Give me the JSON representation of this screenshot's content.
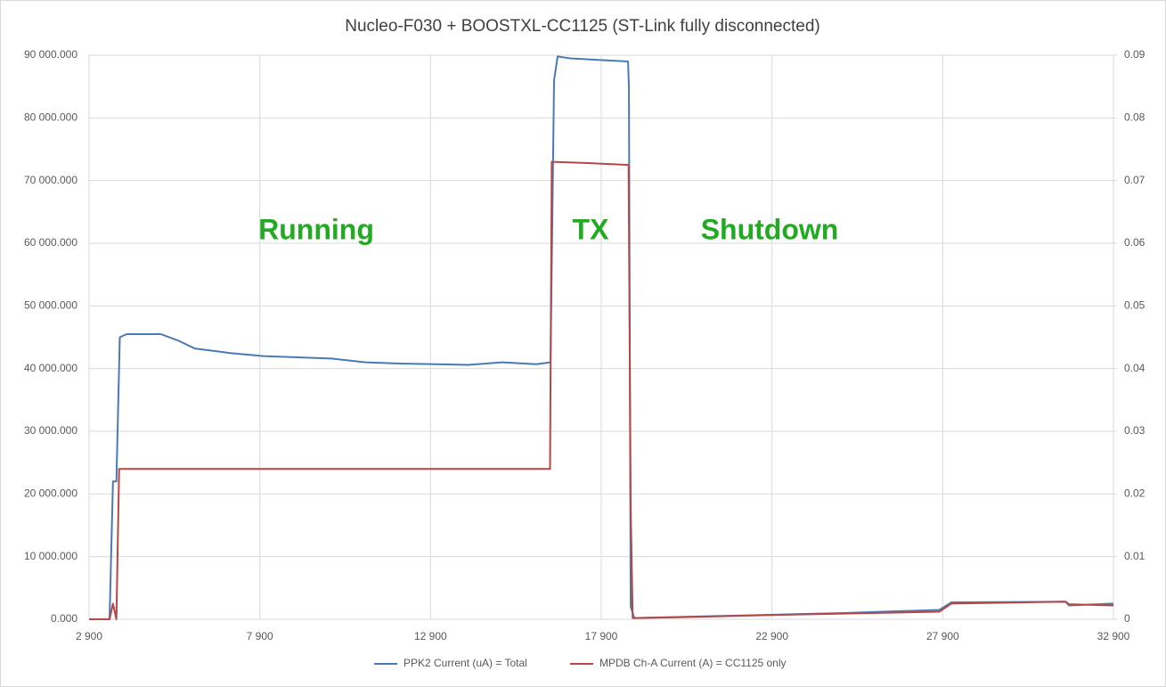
{
  "chart_data": {
    "type": "line",
    "title": "Nucleo-F030 + BOOSTXL-CC1125  (ST-Link fully disconnected)",
    "annotations": [
      "Running",
      "TX",
      "Shutdown"
    ],
    "xlim": [
      2900,
      32900
    ],
    "xticks": [
      {
        "value": 2900,
        "label": "2 900"
      },
      {
        "value": 7900,
        "label": "7 900"
      },
      {
        "value": 12900,
        "label": "12 900"
      },
      {
        "value": 17900,
        "label": "17 900"
      },
      {
        "value": 22900,
        "label": "22 900"
      },
      {
        "value": 27900,
        "label": "27 900"
      },
      {
        "value": 32900,
        "label": "32 900"
      }
    ],
    "ylim": [
      0,
      90000
    ],
    "yticks": [
      {
        "value": 0,
        "label": "0.000"
      },
      {
        "value": 10000,
        "label": "10 000.000"
      },
      {
        "value": 20000,
        "label": "20 000.000"
      },
      {
        "value": 30000,
        "label": "30 000.000"
      },
      {
        "value": 40000,
        "label": "40 000.000"
      },
      {
        "value": 50000,
        "label": "50 000.000"
      },
      {
        "value": 60000,
        "label": "60 000.000"
      },
      {
        "value": 70000,
        "label": "70 000.000"
      },
      {
        "value": 80000,
        "label": "80 000.000"
      },
      {
        "value": 90000,
        "label": "90 000.000"
      }
    ],
    "y2lim": [
      0,
      0.09
    ],
    "y2ticks": [
      0,
      0.01,
      0.02,
      0.03,
      0.04,
      0.05,
      0.06,
      0.07,
      0.08,
      0.09
    ],
    "grid": true,
    "legend": "bottom",
    "series": [
      {
        "name": "PPK2 Current (uA) = Total",
        "color": "#4a7ab5",
        "axis": "y",
        "x": [
          2900,
          3500,
          3600,
          3700,
          3800,
          4000,
          5000,
          5500,
          6000,
          7000,
          8000,
          10000,
          11000,
          12000,
          14000,
          15000,
          16000,
          16414,
          16518,
          16622,
          17000,
          18000,
          18684,
          18710,
          18762,
          18866,
          22000,
          25000,
          27800,
          28156,
          31500,
          31600,
          32900
        ],
        "values": [
          0,
          0,
          22000,
          22000,
          45000,
          45500,
          45500,
          44500,
          43200,
          42500,
          42000,
          41600,
          41000,
          40800,
          40600,
          41000,
          40700,
          41000,
          86000,
          89800,
          89500,
          89200,
          89000,
          85000,
          2000,
          200,
          600,
          1000,
          1500,
          2700,
          2800,
          2200,
          2500
        ]
      },
      {
        "name": "MPDB Ch-A Current (A) = CC1125 only",
        "color": "#b64745",
        "axis": "y2",
        "x": [
          2900,
          3500,
          3600,
          3700,
          3780,
          16400,
          16450,
          17500,
          18700,
          18762,
          18820,
          20000,
          23000,
          27800,
          28150,
          31500,
          31600,
          32900
        ],
        "values": [
          0,
          0,
          0.0025,
          0,
          0.024,
          0.024,
          0.073,
          0.0728,
          0.0725,
          0.018,
          0.0002,
          0.0003,
          0.0007,
          0.0012,
          0.0025,
          0.0028,
          0.0024,
          0.0022
        ]
      }
    ]
  }
}
